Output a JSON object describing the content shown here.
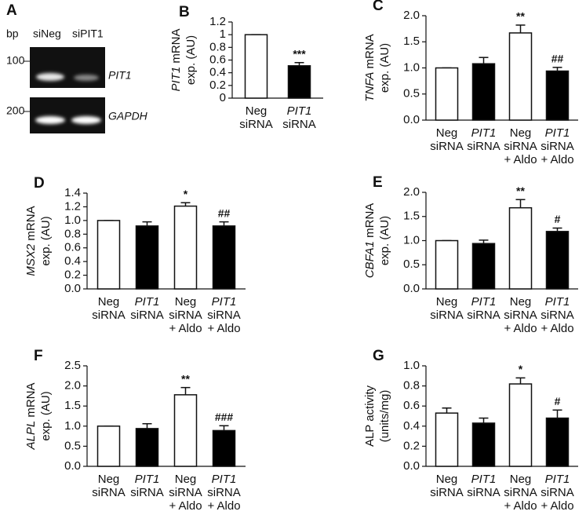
{
  "gel": {
    "panel": "A",
    "unit": "bp",
    "lanes": [
      "siNeg",
      "siPIT1"
    ],
    "markers": [
      "100",
      "200"
    ],
    "genes": [
      "PIT1",
      "GAPDH"
    ]
  },
  "chart_data": [
    {
      "type": "bar",
      "panel": "B",
      "ylabel": [
        [
          {
            "text": "PIT1",
            "italic": true
          },
          {
            "text": " mRNA"
          }
        ],
        [
          {
            "text": "exp. (AU)"
          }
        ]
      ],
      "categories": [
        [
          "Neg",
          "siRNA"
        ],
        [
          "PIT1",
          "siRNA"
        ]
      ],
      "values": [
        1,
        0.51
      ],
      "errors": [
        0,
        0.05
      ],
      "annotations": [
        null,
        "***"
      ],
      "colors": [
        "#ffffff",
        "#000000"
      ],
      "ylim": [
        0,
        1.2
      ],
      "yticks": [
        0,
        0.2,
        0.4,
        0.6,
        0.8,
        1,
        1.2
      ]
    },
    {
      "type": "bar",
      "panel": "C",
      "ylabel": [
        [
          {
            "text": "TNFA",
            "italic": true
          },
          {
            "text": " mRNA"
          }
        ],
        [
          {
            "text": "exp. (AU)"
          }
        ]
      ],
      "categories": [
        [
          "Neg",
          "siRNA"
        ],
        [
          "PIT1",
          "siRNA"
        ],
        [
          "Neg",
          "siRNA",
          "+ Aldo"
        ],
        [
          "PIT1",
          "siRNA",
          "+ Aldo"
        ]
      ],
      "values": [
        1,
        1.08,
        1.67,
        0.94
      ],
      "errors": [
        0,
        0.12,
        0.15,
        0.07
      ],
      "annotations": [
        null,
        null,
        "**",
        "##"
      ],
      "colors": [
        "#ffffff",
        "#000000",
        "#ffffff",
        "#000000"
      ],
      "ylim": [
        0,
        2
      ],
      "yticks": [
        {
          "value": 0,
          "label": "0.0"
        },
        {
          "value": 0.5,
          "label": "0.5"
        },
        {
          "value": 1,
          "label": "1.0"
        },
        {
          "value": 1.5,
          "label": "1.5"
        },
        {
          "value": 2,
          "label": "2.0"
        }
      ]
    },
    {
      "type": "bar",
      "panel": "D",
      "ylabel": [
        [
          {
            "text": "MSX2",
            "italic": true
          },
          {
            "text": " mRNA"
          }
        ],
        [
          {
            "text": "exp. (AU)"
          }
        ]
      ],
      "categories": [
        [
          "Neg",
          "siRNA"
        ],
        [
          "PIT1",
          "siRNA"
        ],
        [
          "Neg",
          "siRNA",
          "+ Aldo"
        ],
        [
          "PIT1",
          "siRNA",
          "+ Aldo"
        ]
      ],
      "values": [
        1,
        0.92,
        1.21,
        0.92
      ],
      "errors": [
        0,
        0.06,
        0.05,
        0.06
      ],
      "annotations": [
        null,
        null,
        "*",
        "##"
      ],
      "colors": [
        "#ffffff",
        "#000000",
        "#ffffff",
        "#000000"
      ],
      "ylim": [
        0,
        1.4
      ],
      "yticks": [
        {
          "value": 0,
          "label": "0.0"
        },
        0.2,
        0.4,
        0.6,
        0.8,
        {
          "value": 1,
          "label": "1.0"
        },
        1.2,
        1.4
      ]
    },
    {
      "type": "bar",
      "panel": "E",
      "ylabel": [
        [
          {
            "text": "CBFA1",
            "italic": true
          },
          {
            "text": " mRNA"
          }
        ],
        [
          {
            "text": "exp. (AU)"
          }
        ]
      ],
      "categories": [
        [
          "Neg",
          "siRNA"
        ],
        [
          "PIT1",
          "siRNA"
        ],
        [
          "Neg",
          "siRNA",
          "+ Aldo"
        ],
        [
          "PIT1",
          "siRNA",
          "+ Aldo"
        ]
      ],
      "values": [
        1,
        0.94,
        1.68,
        1.19
      ],
      "errors": [
        0,
        0.07,
        0.17,
        0.07
      ],
      "annotations": [
        null,
        null,
        "**",
        "#"
      ],
      "colors": [
        "#ffffff",
        "#000000",
        "#ffffff",
        "#000000"
      ],
      "ylim": [
        0,
        2
      ],
      "yticks": [
        {
          "value": 0,
          "label": "0.0"
        },
        {
          "value": 0.5,
          "label": "0.5"
        },
        {
          "value": 1,
          "label": "1.0"
        },
        {
          "value": 1.5,
          "label": "1.5"
        },
        {
          "value": 2,
          "label": "2.0"
        }
      ]
    },
    {
      "type": "bar",
      "panel": "F",
      "ylabel": [
        [
          {
            "text": "ALPL",
            "italic": true
          },
          {
            "text": " mRNA"
          }
        ],
        [
          {
            "text": "exp. (AU)"
          }
        ]
      ],
      "categories": [
        [
          "Neg",
          "siRNA"
        ],
        [
          "PIT1",
          "siRNA"
        ],
        [
          "Neg",
          "siRNA",
          "+ Aldo"
        ],
        [
          "PIT1",
          "siRNA",
          "+ Aldo"
        ]
      ],
      "values": [
        1,
        0.94,
        1.78,
        0.89
      ],
      "errors": [
        0,
        0.12,
        0.18,
        0.12
      ],
      "annotations": [
        null,
        null,
        "**",
        "###"
      ],
      "colors": [
        "#ffffff",
        "#000000",
        "#ffffff",
        "#000000"
      ],
      "ylim": [
        0,
        2.5
      ],
      "yticks": [
        {
          "value": 0,
          "label": "0.0"
        },
        {
          "value": 0.5,
          "label": "0.5"
        },
        {
          "value": 1,
          "label": "1.0"
        },
        {
          "value": 1.5,
          "label": "1.5"
        },
        {
          "value": 2,
          "label": "2.0"
        },
        {
          "value": 2.5,
          "label": "2.5"
        }
      ]
    },
    {
      "type": "bar",
      "panel": "G",
      "ylabel": [
        [
          {
            "text": "ALP activity"
          }
        ],
        [
          {
            "text": "(units/mg)"
          }
        ]
      ],
      "categories": [
        [
          "Neg",
          "siRNA"
        ],
        [
          "PIT1",
          "siRNA"
        ],
        [
          "Neg",
          "siRNA",
          "+ Aldo"
        ],
        [
          "PIT1",
          "siRNA",
          "+ Aldo"
        ]
      ],
      "values": [
        0.53,
        0.43,
        0.82,
        0.48
      ],
      "errors": [
        0.05,
        0.05,
        0.06,
        0.08
      ],
      "annotations": [
        null,
        null,
        "*",
        "#"
      ],
      "colors": [
        "#ffffff",
        "#000000",
        "#ffffff",
        "#000000"
      ],
      "ylim": [
        0,
        1
      ],
      "yticks": [
        {
          "value": 0,
          "label": "0.0"
        },
        0.2,
        0.4,
        0.6,
        0.8,
        {
          "value": 1,
          "label": "1.0"
        }
      ]
    }
  ]
}
